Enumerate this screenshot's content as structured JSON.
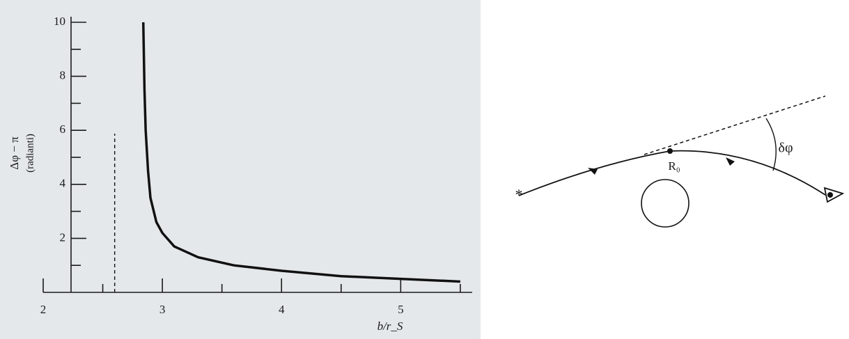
{
  "chart_data": {
    "type": "line",
    "xlabel": "b/r_S",
    "ylabel": "Δφ − π",
    "ylabel_unit": "(radianti)",
    "x": [
      2.84,
      2.85,
      2.86,
      2.88,
      2.9,
      2.95,
      3.0,
      3.1,
      3.3,
      3.6,
      4.0,
      4.5,
      5.0,
      5.5
    ],
    "series": [
      {
        "color": "#111111",
        "values": [
          10,
          7.5,
          6,
          4.5,
          3.5,
          2.6,
          2.2,
          1.7,
          1.3,
          1.0,
          0.8,
          0.6,
          0.5,
          0.4
        ]
      }
    ],
    "asymptote": 2.6,
    "xlim": [
      2,
      5.6
    ],
    "xticks": [
      2,
      3,
      4,
      5
    ],
    "xminor": [
      2.5,
      3.5,
      4.5,
      5.5
    ],
    "ylim": [
      0,
      10
    ],
    "yticks": [
      2,
      4,
      6,
      8,
      10
    ],
    "yminor": [
      1,
      3,
      5,
      7,
      9
    ]
  },
  "diagram": {
    "point_label": "R₀",
    "angle_label": "δφ"
  }
}
